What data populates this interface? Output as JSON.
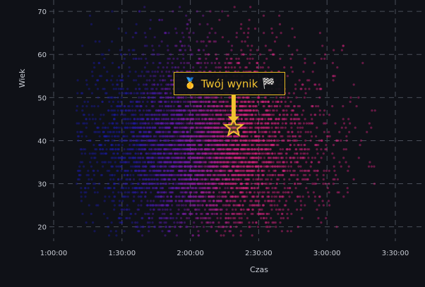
{
  "chart_data": {
    "type": "scatter",
    "title": "",
    "xlabel": "Czas",
    "ylabel": "Wiek",
    "x_ticks": [
      "1:00:00",
      "1:30:00",
      "2:00:00",
      "2:30:00",
      "3:00:00",
      "3:30:00"
    ],
    "y_ticks": [
      "20",
      "30",
      "40",
      "50",
      "60",
      "70"
    ],
    "xlim": [
      "1:00:00",
      "3:30:00"
    ],
    "ylim": [
      17,
      71
    ],
    "grid": true,
    "color_scale": [
      "#1a1aa0",
      "#6a1aa8",
      "#d0247c"
    ],
    "point_count_approx": 6000,
    "highlight": {
      "x": "2:19:00",
      "y": 43,
      "marker": "star-icon",
      "color": "#f2c230",
      "label": "Twój wynik",
      "icons": [
        "medal-icon",
        "checkered-flag-icon"
      ]
    }
  }
}
